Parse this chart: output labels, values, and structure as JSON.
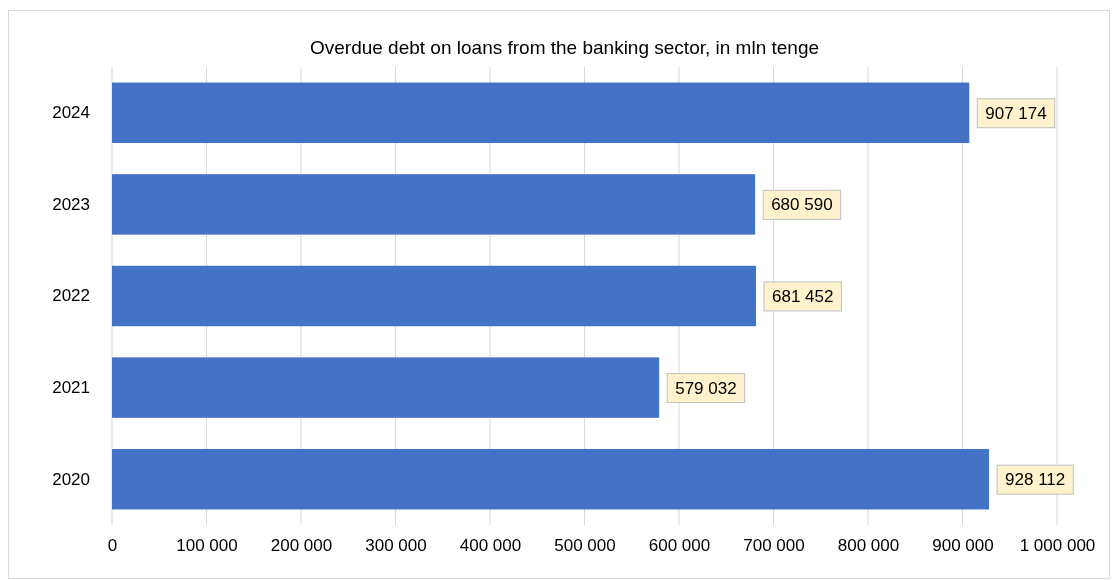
{
  "chart_data": {
    "type": "bar",
    "orientation": "horizontal",
    "title": "Overdue debt on loans from the banking sector, in mln tenge",
    "categories": [
      "2024",
      "2023",
      "2022",
      "2021",
      "2020"
    ],
    "values": [
      907174,
      680590,
      681452,
      579032,
      928112
    ],
    "value_labels": [
      "907 174",
      "680 590",
      "681 452",
      "579 032",
      "928 112"
    ],
    "color": "#4472c4",
    "xlim": [
      0,
      1000000
    ],
    "xticks": [
      0,
      {
        "value": 100000,
        "label": "100 000"
      },
      {
        "value": 200000,
        "label": "200 000"
      },
      {
        "value": 300000,
        "label": "300 000"
      },
      {
        "value": 400000,
        "label": "400 000"
      },
      {
        "value": 500000,
        "label": "500 000"
      },
      {
        "value": 600000,
        "label": "600 000"
      },
      {
        "value": 700000,
        "label": "700 000"
      },
      {
        "value": 800000,
        "label": "800 000"
      },
      {
        "value": 900000,
        "label": "900 000"
      },
      {
        "value": 1000000,
        "label": "1 000 000"
      }
    ],
    "grid": "x"
  }
}
